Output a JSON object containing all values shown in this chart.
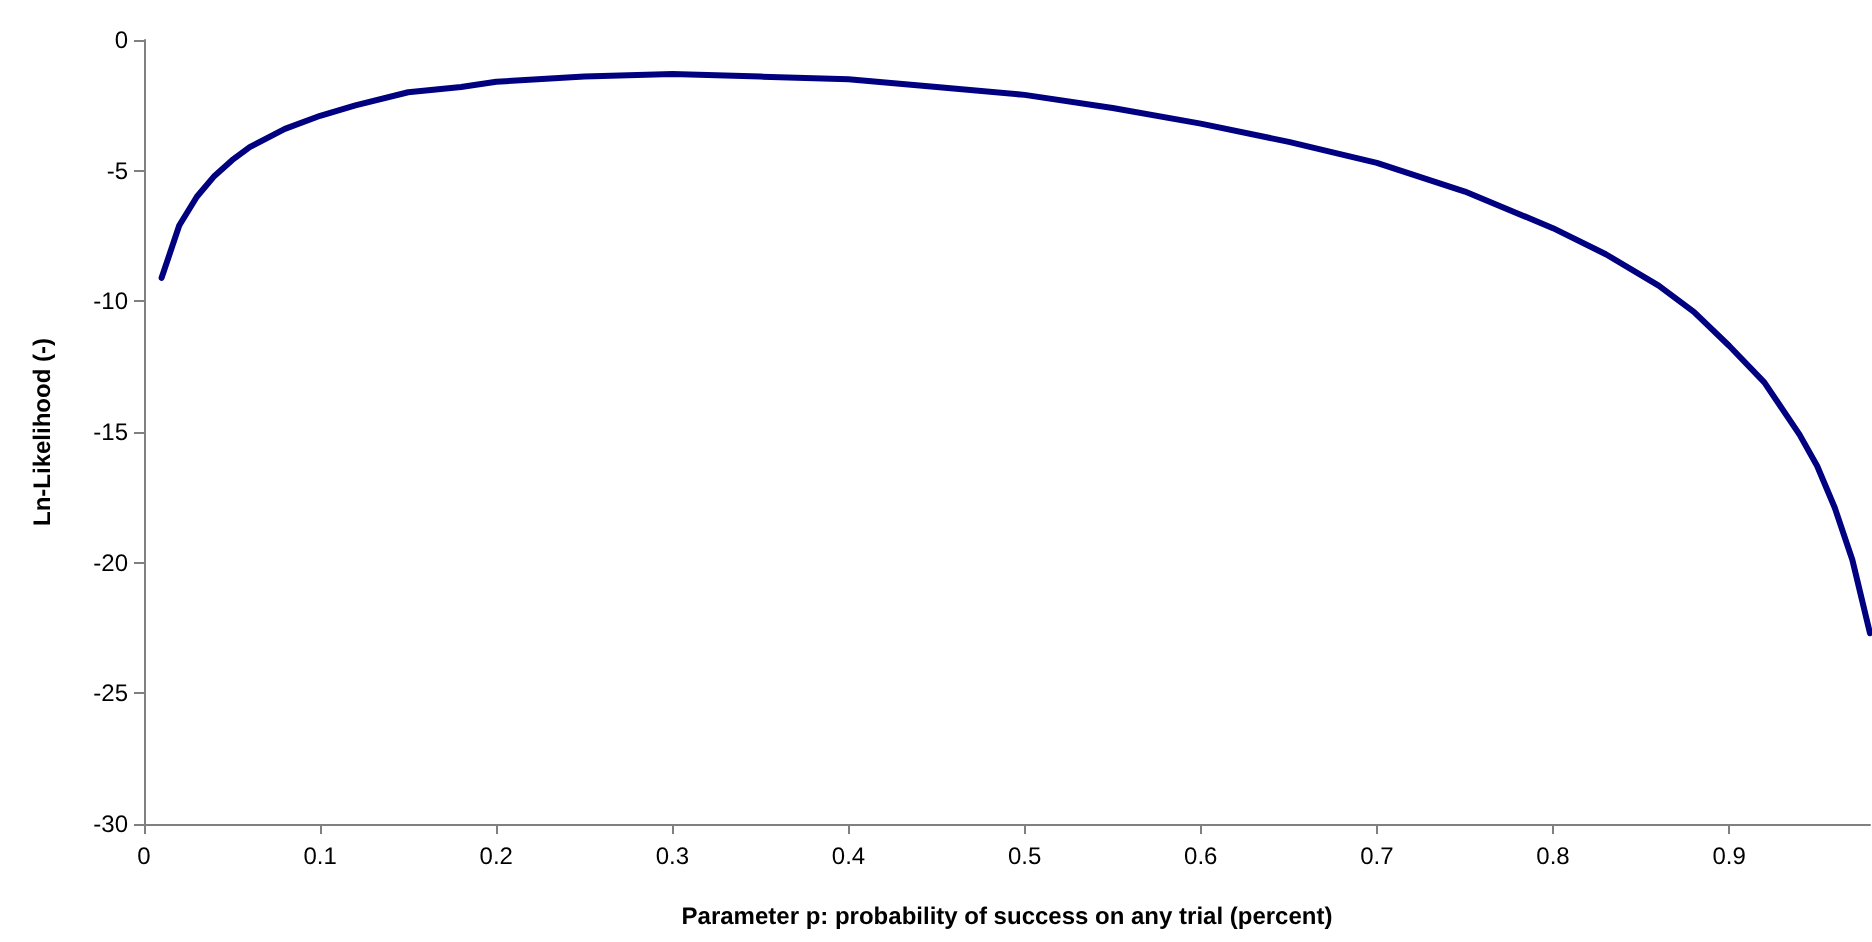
{
  "chart_data": {
    "type": "line",
    "xlabel": "Parameter p: probability of success on any trial (percent)",
    "ylabel": "Ln-Likelihood (-)",
    "x": [
      0.01,
      0.02,
      0.03,
      0.04,
      0.05,
      0.06,
      0.08,
      0.1,
      0.12,
      0.15,
      0.18,
      0.2,
      0.25,
      0.3,
      0.35,
      0.4,
      0.45,
      0.5,
      0.55,
      0.6,
      0.65,
      0.7,
      0.75,
      0.8,
      0.83,
      0.86,
      0.88,
      0.9,
      0.92,
      0.94,
      0.95,
      0.96,
      0.97,
      0.98
    ],
    "series": [
      {
        "color": "#000080",
        "values": [
          -9.1,
          -7.1,
          -6.0,
          -5.2,
          -4.6,
          -4.1,
          -3.4,
          -2.9,
          -2.5,
          -2.0,
          -1.8,
          -1.6,
          -1.4,
          -1.3,
          -1.4,
          -1.5,
          -1.8,
          -2.1,
          -2.6,
          -3.2,
          -3.9,
          -4.7,
          -5.8,
          -7.2,
          -8.2,
          -9.4,
          -10.4,
          -11.7,
          -13.1,
          -15.1,
          -16.3,
          -17.9,
          -19.9,
          -22.7
        ]
      }
    ],
    "xlim": [
      0,
      0.98
    ],
    "xticks": [
      0,
      0.1,
      0.2,
      0.3,
      0.4,
      0.5,
      0.6,
      0.7,
      0.8,
      0.9
    ],
    "ylim": [
      -30,
      0
    ],
    "yticks": [
      -30,
      -25,
      -20,
      -15,
      -10,
      -5,
      0
    ],
    "grid": false,
    "marker": "none",
    "line_style": "solid"
  }
}
